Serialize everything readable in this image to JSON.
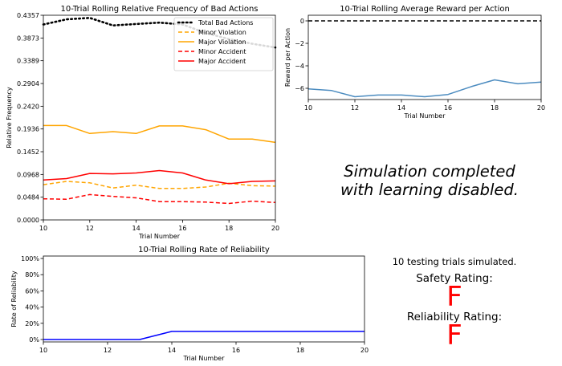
{
  "message": {
    "line1": "Simulation completed",
    "line2": "with learning disabled."
  },
  "summary": {
    "trials_text": "10 testing trials simulated.",
    "safety_label": "Safety Rating:",
    "safety_grade": "F",
    "reliability_label": "Reliability Rating:",
    "reliability_grade": "F",
    "grade_color": "#ff0000"
  },
  "chart_data": [
    {
      "id": "bad",
      "type": "line",
      "title": "10-Trial Rolling Relative Frequency of Bad Actions",
      "xlabel": "Trial Number",
      "ylabel": "Relative Frequency",
      "xlim": [
        10,
        20
      ],
      "ylim": [
        0,
        0.4357
      ],
      "xticks": [
        "10",
        "12",
        "14",
        "16",
        "18",
        "20"
      ],
      "yticks": [
        "0.0000",
        "0.0484",
        "0.0968",
        "0.1452",
        "0.1936",
        "0.2420",
        "0.2904",
        "0.3389",
        "0.3873",
        "0.4357"
      ],
      "grid": false,
      "legend_position": "top-right",
      "x": [
        10,
        11,
        12,
        13,
        14,
        15,
        16,
        17,
        18,
        19,
        20
      ],
      "series": [
        {
          "name": "Total Bad Actions",
          "color": "#000000",
          "style": "dotted",
          "values": [
            0.416,
            0.427,
            0.43,
            0.414,
            0.417,
            0.42,
            0.416,
            0.398,
            0.385,
            0.375,
            0.367
          ]
        },
        {
          "name": "Minor Violation",
          "color": "#ffa500",
          "style": "dashed",
          "values": [
            0.075,
            0.082,
            0.079,
            0.068,
            0.074,
            0.067,
            0.067,
            0.07,
            0.078,
            0.073,
            0.072
          ]
        },
        {
          "name": "Major Violation",
          "color": "#ffa500",
          "style": "solid",
          "values": [
            0.201,
            0.201,
            0.184,
            0.188,
            0.184,
            0.2,
            0.2,
            0.192,
            0.172,
            0.172,
            0.165
          ]
        },
        {
          "name": "Minor Accident",
          "color": "#ff0000",
          "style": "dashed",
          "values": [
            0.045,
            0.044,
            0.054,
            0.05,
            0.047,
            0.039,
            0.039,
            0.038,
            0.035,
            0.04,
            0.037
          ]
        },
        {
          "name": "Major Accident",
          "color": "#ff0000",
          "style": "solid",
          "values": [
            0.085,
            0.088,
            0.099,
            0.098,
            0.1,
            0.105,
            0.1,
            0.085,
            0.077,
            0.082,
            0.083
          ]
        }
      ]
    },
    {
      "id": "reward",
      "type": "line",
      "title": "10-Trial Rolling Average Reward per Action",
      "xlabel": "Trial Number",
      "ylabel": "Reward per Action",
      "xlim": [
        10,
        20
      ],
      "ylim": [
        -7,
        0.5
      ],
      "xticks": [
        "10",
        "12",
        "14",
        "16",
        "18",
        "20"
      ],
      "yticks": [
        "−6",
        "−4",
        "−2",
        "0"
      ],
      "grid": false,
      "reference_line": {
        "y": 0,
        "style": "dashed",
        "color": "#000000"
      },
      "x": [
        10,
        11,
        12,
        13,
        14,
        15,
        16,
        17,
        18,
        19,
        20
      ],
      "series": [
        {
          "color": "#4c8cc0",
          "style": "solid",
          "values": [
            -6.05,
            -6.2,
            -6.75,
            -6.6,
            -6.6,
            -6.75,
            -6.55,
            -5.85,
            -5.25,
            -5.6,
            -5.45
          ]
        }
      ]
    },
    {
      "id": "rel",
      "type": "line",
      "title": "10-Trial Rolling Rate of Reliability",
      "xlabel": "Trial Number",
      "ylabel": "Rate of Reliability",
      "xlim": [
        10,
        20
      ],
      "ylim": [
        -3,
        103
      ],
      "xticks": [
        "10",
        "12",
        "14",
        "16",
        "18",
        "20"
      ],
      "yticks": [
        "0%",
        "20%",
        "40%",
        "60%",
        "80%",
        "100%"
      ],
      "grid": false,
      "x": [
        10,
        11,
        12,
        13,
        14,
        15,
        16,
        17,
        18,
        19,
        20
      ],
      "series": [
        {
          "color": "#0000ff",
          "style": "solid",
          "values": [
            0,
            0,
            0,
            0,
            10,
            10,
            10,
            10,
            10,
            10,
            10
          ]
        }
      ]
    }
  ]
}
